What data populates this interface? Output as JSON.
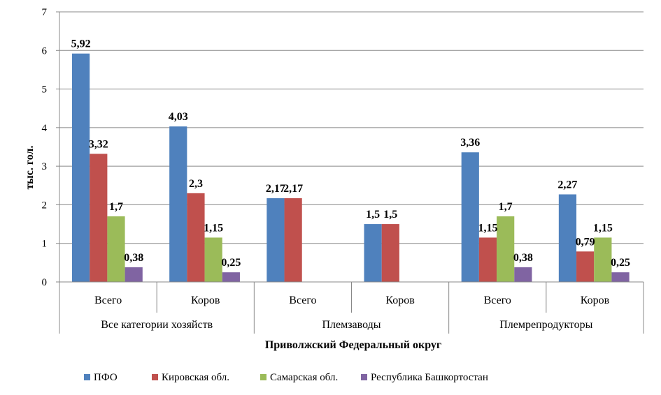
{
  "chart_data": {
    "type": "bar",
    "ylabel": "тыс. гол.",
    "xlabel": "Приволжский  Федеральный  округ",
    "ylim": [
      0,
      7
    ],
    "yticks": [
      "0",
      "1",
      "2",
      "3",
      "4",
      "5",
      "6",
      "7"
    ],
    "grid": true,
    "legend_position": "bottom",
    "groups": [
      {
        "label": "Все категории хозяйств",
        "categories": [
          "Всего",
          "Коров"
        ]
      },
      {
        "label": "Племзаводы",
        "categories": [
          "Всего",
          "Коров"
        ]
      },
      {
        "label": "Племрепродукторы",
        "categories": [
          "Всего",
          "Коров"
        ]
      }
    ],
    "series": [
      {
        "name": "ПФО",
        "color": "#4f81bd",
        "values": [
          5.92,
          4.03,
          2.17,
          1.5,
          3.36,
          2.27
        ],
        "labels": [
          "5,92",
          "4,03",
          "2,17",
          "1,5",
          "3,36",
          "2,27"
        ]
      },
      {
        "name": "Кировская обл.",
        "color": "#c0504d",
        "values": [
          3.32,
          2.3,
          2.17,
          1.5,
          1.15,
          0.79
        ],
        "labels": [
          "3,32",
          "2,3",
          "2,17",
          "1,5",
          "1,15",
          "0,79"
        ]
      },
      {
        "name": "Самарская обл.",
        "color": "#9bbb59",
        "values": [
          1.7,
          1.15,
          null,
          null,
          1.7,
          1.15
        ],
        "labels": [
          "1,7",
          "1,15",
          "",
          "",
          "1,7",
          "1,15"
        ]
      },
      {
        "name": "Республика Башкортостан",
        "color": "#8064a2",
        "values": [
          0.38,
          0.25,
          null,
          null,
          0.38,
          0.25
        ],
        "labels": [
          "0,38",
          "0,25",
          "",
          "",
          "0,38",
          "0,25"
        ]
      }
    ]
  }
}
